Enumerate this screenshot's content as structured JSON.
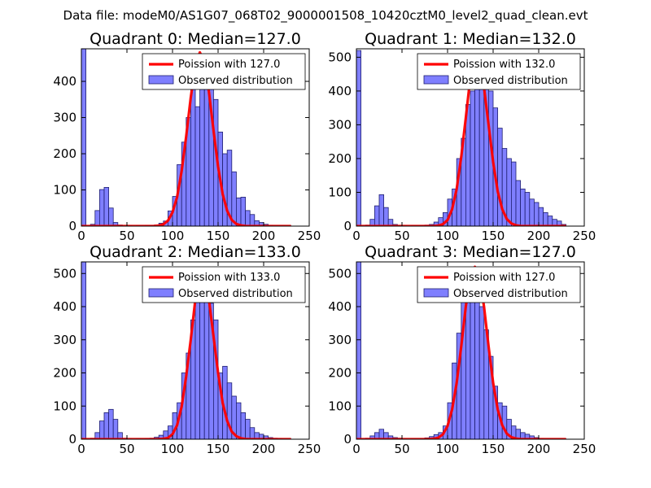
{
  "figure": {
    "suptitle": "Data file: modeM0/AS1G07_068T02_9000001508_10420cztM0_level2_quad_clean.evt",
    "bar_color": "#7f7fff",
    "bar_edge_color": "#1f1f6f",
    "curve_color": "#ff0000"
  },
  "chart_data": [
    {
      "type": "bar",
      "title": "Quadrant 0: Median=127.0",
      "xlim": [
        0,
        250
      ],
      "ylim": [
        0,
        490
      ],
      "xticks": [
        0,
        50,
        100,
        150,
        200,
        250
      ],
      "yticks": [
        0,
        100,
        200,
        300,
        400
      ],
      "bin_width": 5,
      "bin_starts": [
        0,
        5,
        10,
        15,
        20,
        25,
        30,
        35,
        40,
        45,
        50,
        55,
        60,
        65,
        70,
        75,
        80,
        85,
        90,
        95,
        100,
        105,
        110,
        115,
        120,
        125,
        130,
        135,
        140,
        145,
        150,
        155,
        160,
        165,
        170,
        175,
        180,
        185,
        190,
        195,
        200,
        205,
        210,
        215,
        220,
        225
      ],
      "observed": [
        490,
        0,
        5,
        43,
        101,
        107,
        50,
        10,
        3,
        0,
        1,
        0,
        1,
        1,
        2,
        2,
        3,
        8,
        14,
        42,
        82,
        170,
        232,
        300,
        450,
        330,
        440,
        440,
        400,
        350,
        260,
        200,
        210,
        150,
        78,
        80,
        43,
        32,
        15,
        10,
        5,
        2,
        1,
        1,
        1,
        1
      ],
      "poisson_mean": 127.0,
      "poisson_x": [
        0,
        5,
        10,
        15,
        20,
        25,
        30,
        35,
        40,
        45,
        50,
        55,
        60,
        65,
        70,
        75,
        80,
        85,
        90,
        95,
        100,
        105,
        110,
        115,
        120,
        125,
        130,
        135,
        140,
        145,
        150,
        155,
        160,
        165,
        170,
        175,
        180,
        185,
        190,
        195,
        200,
        205,
        210,
        215,
        220,
        225,
        230
      ],
      "poisson_y": [
        0,
        0,
        0,
        0,
        0,
        0,
        0,
        0,
        0,
        0,
        0,
        0,
        0,
        0,
        0,
        0,
        0.3,
        1.5,
        5,
        15,
        38,
        80,
        152,
        248,
        355,
        443,
        480,
        452,
        370,
        264,
        164,
        89,
        42,
        17,
        6,
        2,
        0.5,
        0,
        0,
        0,
        0,
        0,
        0,
        0,
        0,
        0,
        0
      ],
      "legend": {
        "curve_label": "Poission with 127.0",
        "bar_label": "Observed distribution",
        "loc": "upper right"
      }
    },
    {
      "type": "bar",
      "title": "Quadrant 1: Median=132.0",
      "xlim": [
        0,
        250
      ],
      "ylim": [
        0,
        525
      ],
      "xticks": [
        0,
        50,
        100,
        150,
        200,
        250
      ],
      "yticks": [
        0,
        100,
        200,
        300,
        400,
        500
      ],
      "bin_width": 5,
      "bin_starts": [
        0,
        5,
        10,
        15,
        20,
        25,
        30,
        35,
        40,
        45,
        50,
        55,
        60,
        65,
        70,
        75,
        80,
        85,
        90,
        95,
        100,
        105,
        110,
        115,
        120,
        125,
        130,
        135,
        140,
        145,
        150,
        155,
        160,
        165,
        170,
        175,
        180,
        185,
        190,
        195,
        200,
        205,
        210,
        215,
        220,
        225
      ],
      "observed": [
        520,
        0,
        3,
        20,
        60,
        93,
        55,
        20,
        5,
        2,
        1,
        0,
        1,
        1,
        2,
        3,
        5,
        12,
        25,
        40,
        80,
        110,
        200,
        260,
        360,
        400,
        460,
        450,
        440,
        400,
        350,
        290,
        230,
        200,
        190,
        135,
        110,
        100,
        80,
        70,
        55,
        40,
        30,
        20,
        15,
        5
      ],
      "poisson_mean": 132.0,
      "poisson_x": [
        0,
        5,
        10,
        15,
        20,
        25,
        30,
        35,
        40,
        45,
        50,
        55,
        60,
        65,
        70,
        75,
        80,
        85,
        90,
        95,
        100,
        105,
        110,
        115,
        120,
        125,
        130,
        135,
        140,
        145,
        150,
        155,
        160,
        165,
        170,
        175,
        180,
        185,
        190,
        195,
        200,
        205,
        210,
        215,
        220,
        225,
        230
      ],
      "poisson_y": [
        0,
        0,
        0,
        0,
        0,
        0,
        0,
        0,
        0,
        0,
        0,
        0,
        0,
        0,
        0,
        0,
        0,
        0.3,
        1.5,
        6,
        18,
        50,
        110,
        205,
        320,
        440,
        505,
        480,
        410,
        300,
        190,
        103,
        50,
        21,
        8,
        2.5,
        0.6,
        0,
        0,
        0,
        0,
        0,
        0,
        0,
        0,
        0,
        0
      ],
      "legend": {
        "curve_label": "Poission with 132.0",
        "bar_label": "Observed distribution",
        "loc": "upper right"
      }
    },
    {
      "type": "bar",
      "title": "Quadrant 2: Median=133.0",
      "xlim": [
        0,
        250
      ],
      "ylim": [
        0,
        535
      ],
      "xticks": [
        0,
        50,
        100,
        150,
        200,
        250
      ],
      "yticks": [
        0,
        100,
        200,
        300,
        400,
        500
      ],
      "bin_width": 5,
      "bin_starts": [
        0,
        5,
        10,
        15,
        20,
        25,
        30,
        35,
        40,
        45,
        50,
        55,
        60,
        65,
        70,
        75,
        80,
        85,
        90,
        95,
        100,
        105,
        110,
        115,
        120,
        125,
        130,
        135,
        140,
        145,
        150,
        155,
        160,
        165,
        170,
        175,
        180,
        185,
        190,
        195,
        200,
        205,
        210,
        215,
        220,
        225
      ],
      "observed": [
        535,
        0,
        3,
        20,
        55,
        80,
        90,
        60,
        20,
        3,
        1,
        0,
        1,
        1,
        2,
        3,
        6,
        12,
        25,
        40,
        80,
        110,
        200,
        260,
        360,
        430,
        500,
        440,
        410,
        360,
        200,
        220,
        170,
        130,
        110,
        80,
        60,
        35,
        20,
        15,
        10,
        5,
        3,
        2,
        1,
        1
      ],
      "poisson_mean": 133.0,
      "poisson_x": [
        0,
        5,
        10,
        15,
        20,
        25,
        30,
        35,
        40,
        45,
        50,
        55,
        60,
        65,
        70,
        75,
        80,
        85,
        90,
        95,
        100,
        105,
        110,
        115,
        120,
        125,
        130,
        135,
        140,
        145,
        150,
        155,
        160,
        165,
        170,
        175,
        180,
        185,
        190,
        195,
        200,
        205,
        210,
        215,
        220,
        225,
        230
      ],
      "poisson_y": [
        0,
        0,
        0,
        0,
        0,
        0,
        0,
        0,
        0,
        0,
        0,
        0,
        0,
        0,
        0,
        0,
        0,
        0.3,
        1.2,
        4,
        15,
        42,
        98,
        190,
        300,
        420,
        510,
        480,
        420,
        310,
        200,
        110,
        55,
        23,
        9,
        3,
        0.8,
        0,
        0,
        0,
        0,
        0,
        0,
        0,
        0,
        0,
        0
      ],
      "legend": {
        "curve_label": "Poission with 133.0",
        "bar_label": "Observed distribution",
        "loc": "upper right"
      }
    },
    {
      "type": "bar",
      "title": "Quadrant 3: Median=127.0",
      "xlim": [
        0,
        250
      ],
      "ylim": [
        0,
        535
      ],
      "xticks": [
        0,
        50,
        100,
        150,
        200,
        250
      ],
      "yticks": [
        0,
        100,
        200,
        300,
        400,
        500
      ],
      "bin_width": 5,
      "bin_starts": [
        0,
        5,
        10,
        15,
        20,
        25,
        30,
        35,
        40,
        45,
        50,
        55,
        60,
        65,
        70,
        75,
        80,
        85,
        90,
        95,
        100,
        105,
        110,
        115,
        120,
        125,
        130,
        135,
        140,
        145,
        150,
        155,
        160,
        165,
        170,
        175,
        180,
        185,
        190,
        195,
        200,
        205,
        210,
        215,
        220,
        225
      ],
      "observed": [
        535,
        0,
        3,
        10,
        20,
        30,
        20,
        10,
        5,
        3,
        1,
        0,
        1,
        1,
        2,
        4,
        8,
        14,
        20,
        40,
        110,
        230,
        320,
        440,
        480,
        460,
        460,
        400,
        330,
        250,
        160,
        110,
        100,
        60,
        40,
        30,
        20,
        15,
        10,
        5,
        2,
        1,
        1,
        1,
        1,
        1
      ],
      "poisson_mean": 127.0,
      "poisson_x": [
        0,
        5,
        10,
        15,
        20,
        25,
        30,
        35,
        40,
        45,
        50,
        55,
        60,
        65,
        70,
        75,
        80,
        85,
        90,
        95,
        100,
        105,
        110,
        115,
        120,
        125,
        130,
        135,
        140,
        145,
        150,
        155,
        160,
        165,
        170,
        175,
        180,
        185,
        190,
        195,
        200,
        205,
        210,
        215,
        220,
        225,
        230
      ],
      "poisson_y": [
        0,
        0,
        0,
        0,
        0,
        0,
        0,
        0,
        0,
        0,
        0,
        0,
        0,
        0,
        0,
        0,
        0.3,
        1.5,
        5,
        15,
        40,
        90,
        170,
        280,
        400,
        495,
        520,
        490,
        400,
        280,
        170,
        90,
        42,
        17,
        6,
        2,
        0.5,
        0,
        0,
        0,
        0,
        0,
        0,
        0,
        0,
        0,
        0
      ],
      "legend": {
        "curve_label": "Poission with 127.0",
        "bar_label": "Observed distribution",
        "loc": "upper right"
      }
    }
  ]
}
